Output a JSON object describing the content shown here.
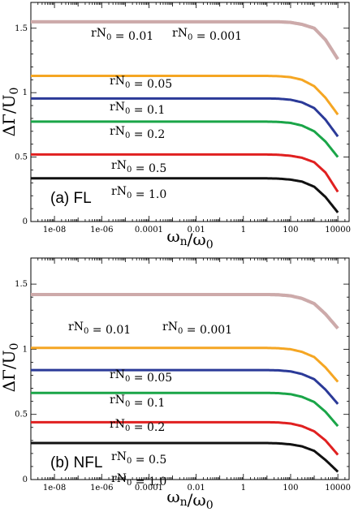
{
  "chart_data": [
    {
      "type": "line",
      "panel_label": "(a)  FL",
      "xlabel": "ωn/ω0",
      "ylabel": "ΔΓ/U0",
      "xscale": "log",
      "xlim": [
        1e-09,
        30000
      ],
      "ylim": [
        0,
        1.7
      ],
      "xticks": [
        "1e-08",
        "1e-06",
        "0.0001",
        "0.01",
        "1",
        "100",
        "10000"
      ],
      "yticks": [
        "0",
        "0.5",
        "1",
        "1.5"
      ],
      "x": [
        1e-09,
        1,
        10,
        30,
        100,
        300,
        1000,
        3000,
        10000
      ],
      "series": [
        {
          "name": "rN0 = 0.01",
          "color": "#b7b7b7",
          "values": [
            1.55,
            1.55,
            1.55,
            1.55,
            1.545,
            1.53,
            1.5,
            1.41,
            1.26
          ]
        },
        {
          "name": "rN0 = 0.001",
          "color": "#d4a5a5",
          "values": [
            1.55,
            1.55,
            1.55,
            1.55,
            1.545,
            1.53,
            1.5,
            1.41,
            1.26
          ]
        },
        {
          "name": "rN0 = 0.05",
          "color": "#f5a623",
          "values": [
            1.13,
            1.13,
            1.13,
            1.128,
            1.12,
            1.1,
            1.05,
            0.96,
            0.83
          ]
        },
        {
          "name": "rN0 = 0.1",
          "color": "#2b3a98",
          "values": [
            0.955,
            0.955,
            0.955,
            0.953,
            0.945,
            0.925,
            0.88,
            0.79,
            0.66
          ]
        },
        {
          "name": "rN0 = 0.2",
          "color": "#1aa548",
          "values": [
            0.775,
            0.775,
            0.775,
            0.773,
            0.765,
            0.745,
            0.7,
            0.62,
            0.5
          ]
        },
        {
          "name": "rN0 = 0.5",
          "color": "#e02020",
          "values": [
            0.52,
            0.52,
            0.52,
            0.518,
            0.51,
            0.495,
            0.46,
            0.38,
            0.23
          ]
        },
        {
          "name": "rN0 = 1.0",
          "color": "#111111",
          "values": [
            0.335,
            0.335,
            0.335,
            0.333,
            0.325,
            0.31,
            0.27,
            0.19,
            0.07
          ]
        }
      ]
    },
    {
      "type": "line",
      "panel_label": "(b)  NFL",
      "xlabel": "ωn/ω0",
      "ylabel": "ΔΓ/U0",
      "xscale": "log",
      "xlim": [
        1e-09,
        30000
      ],
      "ylim": [
        0,
        1.7
      ],
      "xticks": [
        "1e-08",
        "1e-06",
        "0.0001",
        "0.01",
        "1",
        "100",
        "10000"
      ],
      "yticks": [
        "0",
        "0.5",
        "1",
        "1.5"
      ],
      "x": [
        1e-09,
        1,
        10,
        30,
        100,
        300,
        1000,
        3000,
        10000
      ],
      "series": [
        {
          "name": "rN0 = 0.01",
          "color": "#b7b7b7",
          "values": [
            1.42,
            1.42,
            1.42,
            1.418,
            1.41,
            1.39,
            1.35,
            1.27,
            1.16
          ]
        },
        {
          "name": "rN0 = 0.001",
          "color": "#d4a5a5",
          "values": [
            1.42,
            1.42,
            1.42,
            1.418,
            1.41,
            1.39,
            1.35,
            1.27,
            1.16
          ]
        },
        {
          "name": "rN0 = 0.05",
          "color": "#f5a623",
          "values": [
            1.01,
            1.01,
            1.01,
            1.008,
            1.0,
            0.98,
            0.94,
            0.86,
            0.75
          ]
        },
        {
          "name": "rN0 = 0.1",
          "color": "#2b3a98",
          "values": [
            0.84,
            0.84,
            0.84,
            0.838,
            0.83,
            0.81,
            0.77,
            0.69,
            0.58
          ]
        },
        {
          "name": "rN0 = 0.2",
          "color": "#1aa548",
          "values": [
            0.665,
            0.665,
            0.665,
            0.663,
            0.655,
            0.635,
            0.595,
            0.52,
            0.41
          ]
        },
        {
          "name": "rN0 = 0.5",
          "color": "#e02020",
          "values": [
            0.44,
            0.44,
            0.44,
            0.438,
            0.43,
            0.41,
            0.37,
            0.3,
            0.19
          ]
        },
        {
          "name": "rN0 = 1.0",
          "color": "#111111",
          "values": [
            0.28,
            0.28,
            0.28,
            0.278,
            0.27,
            0.255,
            0.22,
            0.15,
            0.06
          ]
        }
      ]
    }
  ]
}
